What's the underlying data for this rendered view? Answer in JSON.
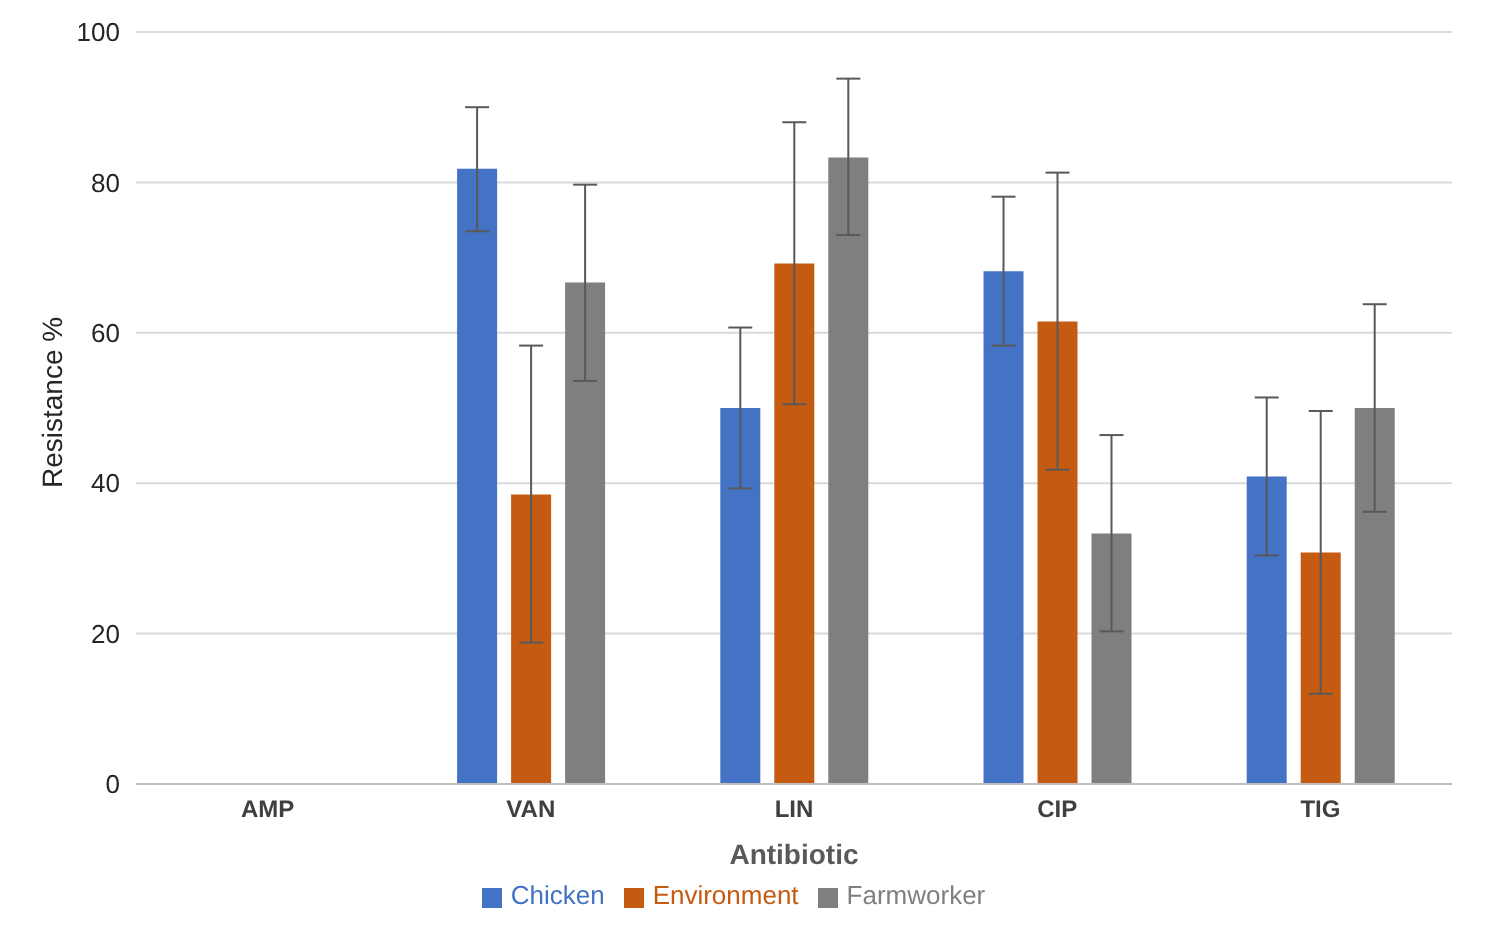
{
  "chart_data": {
    "type": "bar",
    "xlabel": "Antibiotic",
    "ylabel": "Resistance %",
    "categories": [
      "AMP",
      "VAN",
      "LIN",
      "CIP",
      "TIG"
    ],
    "series": [
      {
        "name": "Chicken",
        "color": "#4472c4",
        "values": [
          0,
          81.8,
          50,
          68.2,
          40.9
        ],
        "errors": [
          null,
          [
            73.5,
            90
          ],
          [
            39.3,
            60.7
          ],
          [
            58.3,
            78.1
          ],
          [
            30.4,
            51.4
          ]
        ]
      },
      {
        "name": "Environment",
        "color": "#c55a11",
        "values": [
          0,
          38.5,
          69.2,
          61.5,
          30.8
        ],
        "errors": [
          null,
          [
            18.8,
            58.3
          ],
          [
            50.5,
            88
          ],
          [
            41.8,
            81.3
          ],
          [
            12,
            49.6
          ]
        ]
      },
      {
        "name": "Farmworker",
        "color": "#7f7f7f",
        "values": [
          0,
          66.7,
          83.3,
          33.3,
          50
        ],
        "errors": [
          null,
          [
            53.6,
            79.7
          ],
          [
            73,
            93.8
          ],
          [
            20.3,
            46.4
          ],
          [
            36.2,
            63.8
          ]
        ]
      }
    ],
    "ylim": [
      0,
      100
    ],
    "yticks": [
      0,
      20,
      40,
      60,
      80,
      100
    ],
    "grid": "y",
    "legend": "bottom"
  }
}
